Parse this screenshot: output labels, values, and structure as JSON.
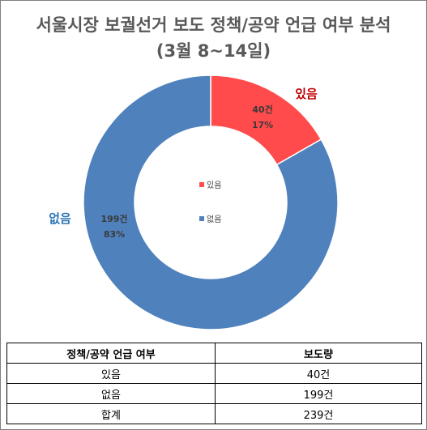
{
  "title": {
    "line1": "서울시장 보궐선거 보도 정책/공약 언급 여부 분석",
    "line2": "(3월 8~14일)"
  },
  "colors": {
    "yes": "#FF4B4B",
    "no": "#4F81BD",
    "title": "#595959",
    "yes_label": "#C00000",
    "no_label": "#2E75B6"
  },
  "chart_data": {
    "type": "pie",
    "variant": "donut",
    "title": "서울시장 보궐선거 보도 정책/공약 언급 여부 분석 (3월 8~14일)",
    "slices": [
      {
        "label": "있음",
        "value": 40,
        "value_label": "40건",
        "percent_label": "17%",
        "color": "#FF4B4B"
      },
      {
        "label": "없음",
        "value": 199,
        "value_label": "199건",
        "percent_label": "83%",
        "color": "#4F81BD"
      }
    ],
    "legend": {
      "placement": "center",
      "entries": [
        "있음",
        "없음"
      ]
    }
  },
  "table": {
    "headers": [
      "정책/공약 언급 여부",
      "보도량"
    ],
    "rows": [
      [
        "있음",
        "40건"
      ],
      [
        "없음",
        "199건"
      ],
      [
        "합계",
        "239건"
      ]
    ]
  }
}
